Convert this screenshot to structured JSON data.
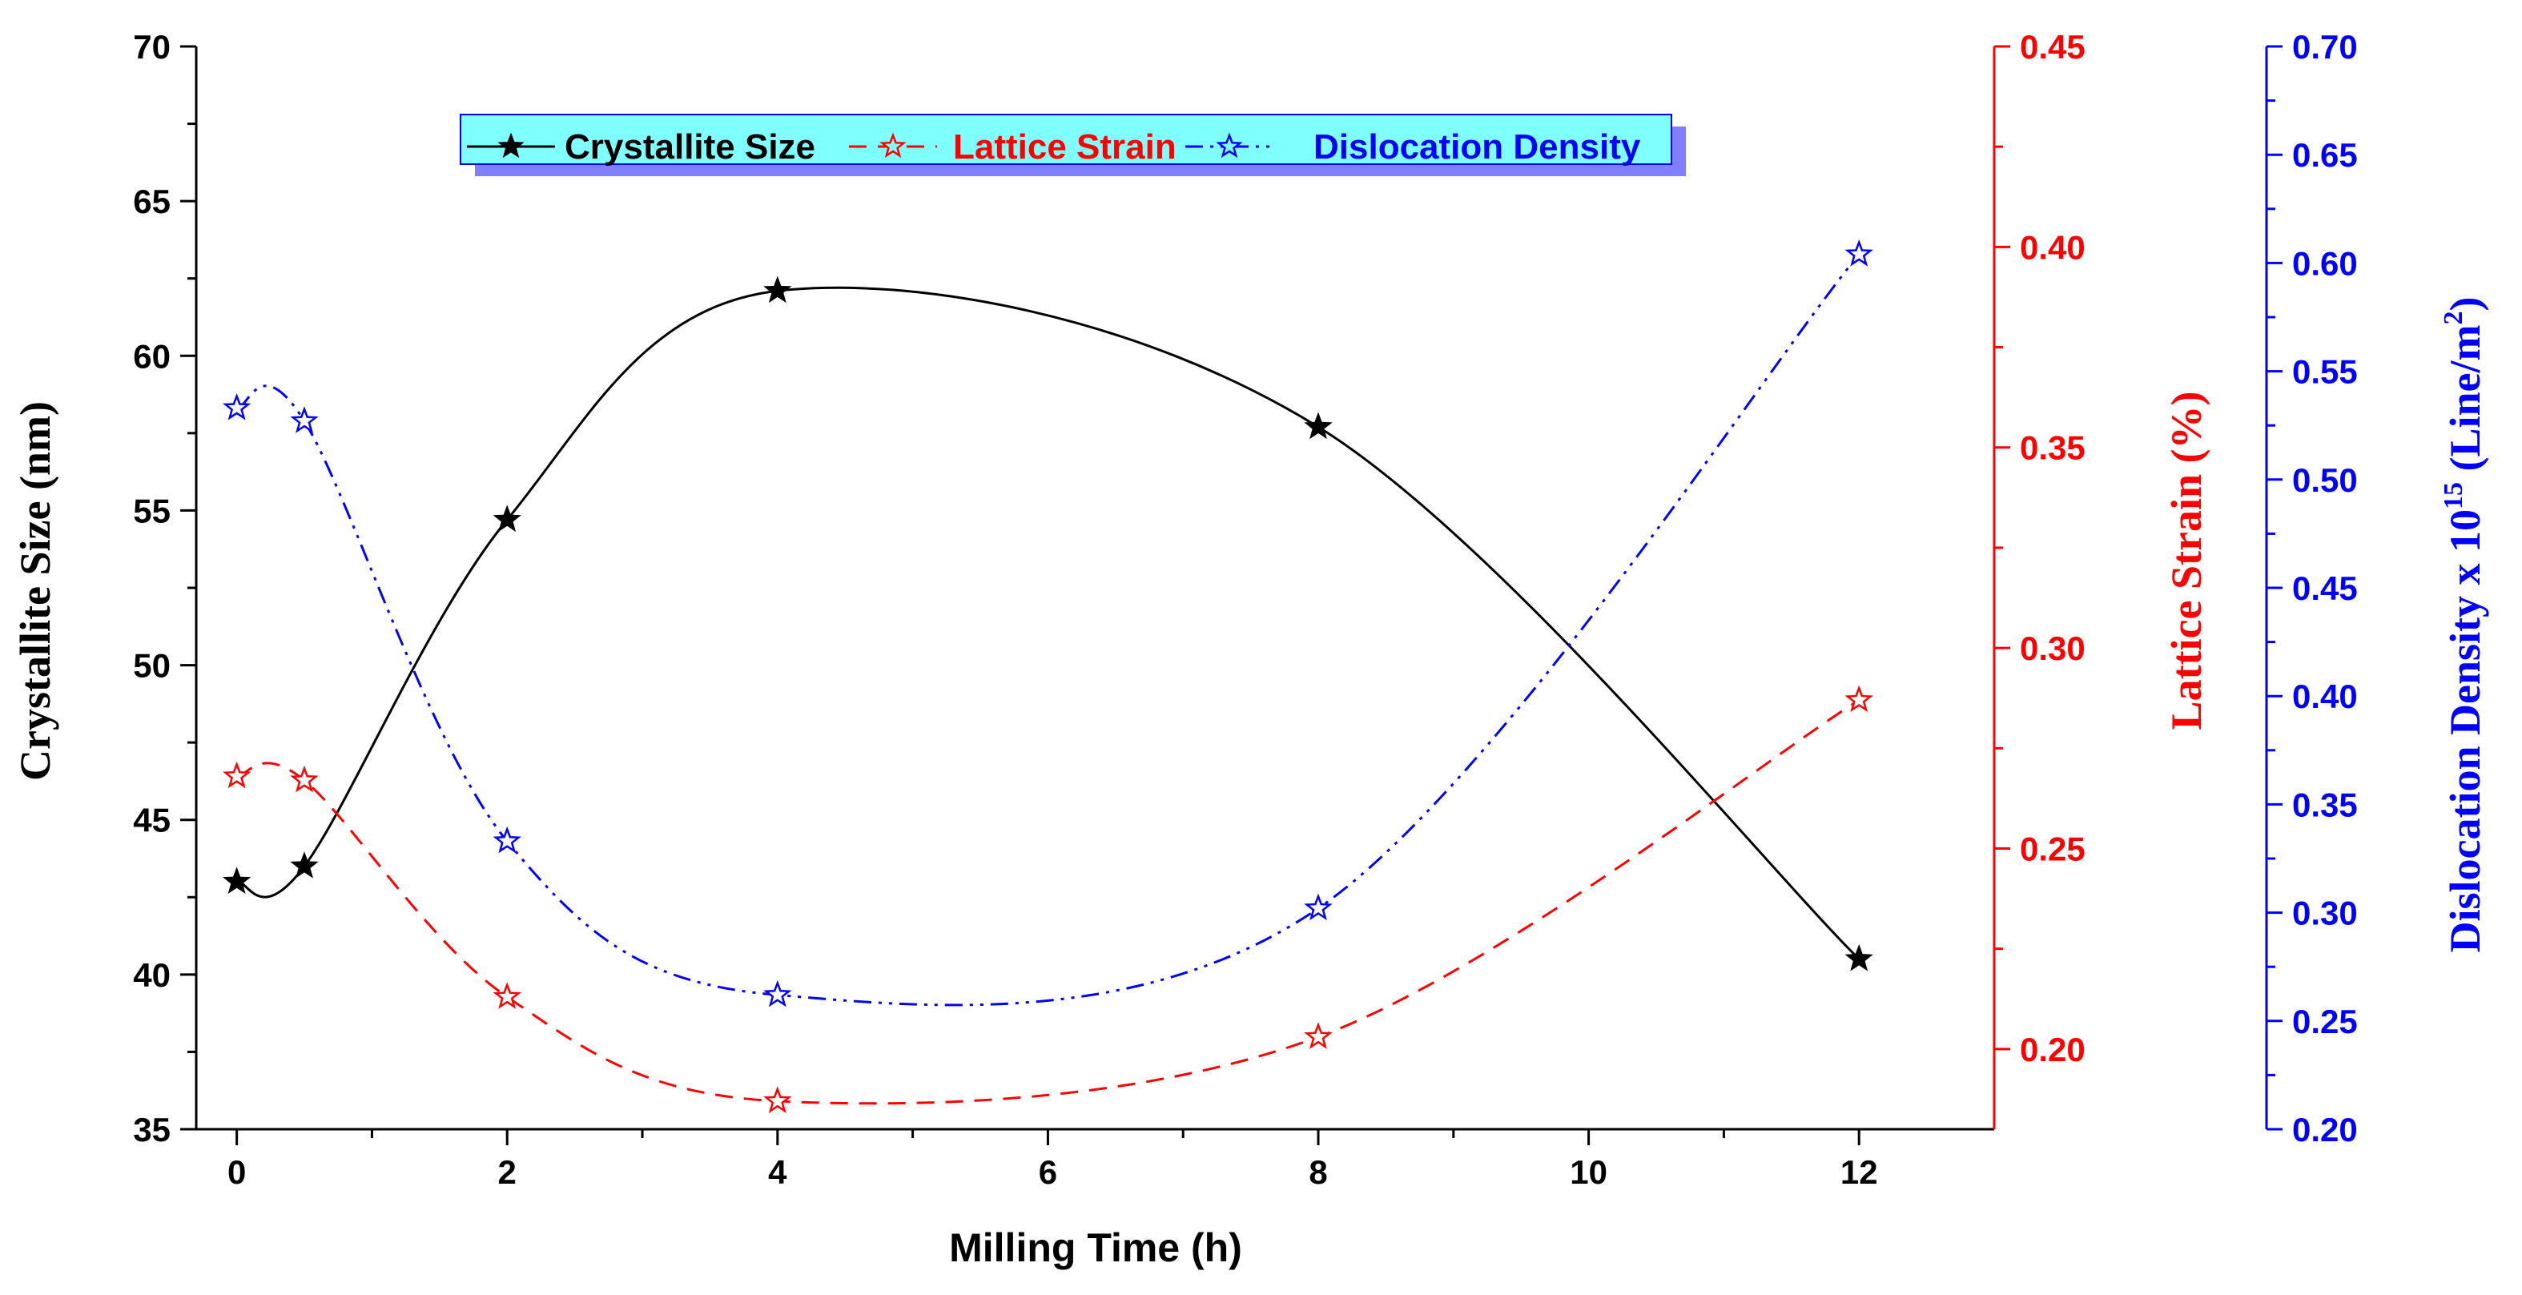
{
  "chart_data": {
    "type": "line",
    "title": "",
    "x": [
      0,
      0.5,
      2,
      4,
      8,
      12
    ],
    "xlabel": "Milling Time (h)",
    "xlim": [
      -0.3,
      13
    ],
    "xticks": [
      0,
      2,
      4,
      6,
      8,
      10,
      12
    ],
    "axes": {
      "left": {
        "label": "Crystallite Size (nm)",
        "ylim": [
          35,
          70
        ],
        "ticks": [
          35,
          40,
          45,
          50,
          55,
          60,
          65,
          70
        ],
        "decimals": 0,
        "color": "#000000"
      },
      "right1": {
        "label": "Lattice Strain (%)",
        "ylim": [
          0.18,
          0.45
        ],
        "ticks": [
          0.2,
          0.25,
          0.3,
          0.35,
          0.4,
          0.45
        ],
        "decimals": 2,
        "color": "#ff0000"
      },
      "right2": {
        "label_main": "Dislocation Density x 10",
        "label_sup1": "15",
        "label_mid": " (Line/m",
        "label_sup2": "2",
        "label_end": ")",
        "ylim": [
          0.2,
          0.7
        ],
        "ticks": [
          0.2,
          0.25,
          0.3,
          0.35,
          0.4,
          0.45,
          0.5,
          0.55,
          0.6,
          0.65,
          0.7
        ],
        "decimals": 2,
        "color": "#0000ff"
      }
    },
    "series": [
      {
        "name": "Crystallite Size",
        "axis": "left",
        "color": "#000000",
        "dash": "solid",
        "marker": "filled-star",
        "values": [
          43.0,
          43.5,
          54.7,
          62.1,
          57.7,
          40.5
        ]
      },
      {
        "name": "Lattice Strain",
        "axis": "right1",
        "color": "#ff0000",
        "dash": "dashed",
        "marker": "open-star",
        "values": [
          0.268,
          0.267,
          0.213,
          0.187,
          0.203,
          0.287
        ]
      },
      {
        "name": "Dislocation Density",
        "axis": "right2",
        "color": "#0000ff",
        "dash": "dash-dot-dot",
        "marker": "open-star",
        "values": [
          0.533,
          0.527,
          0.333,
          0.262,
          0.302,
          0.604
        ]
      }
    ],
    "legend": {
      "position": "top-center",
      "background": "#80ffff",
      "shadow": "#7f7fff"
    }
  }
}
